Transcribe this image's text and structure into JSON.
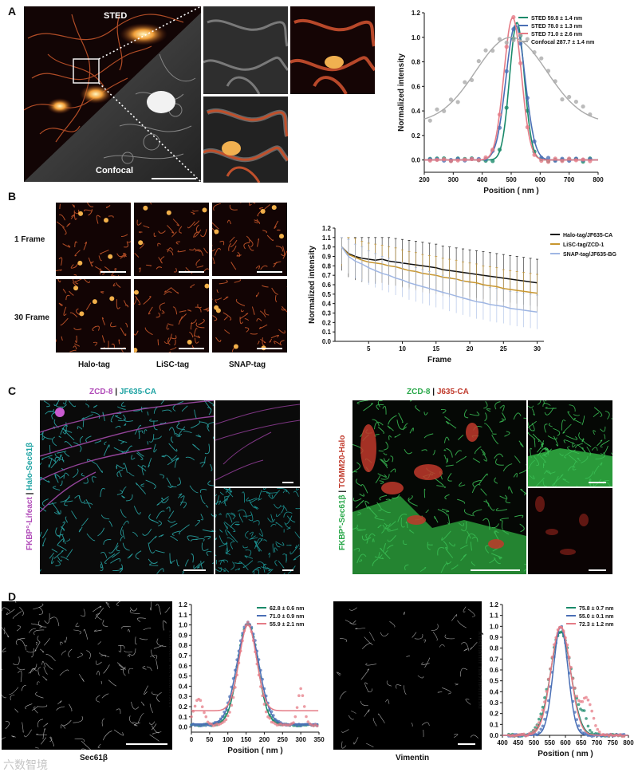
{
  "panels": {
    "A": "A",
    "B": "B",
    "C": "C",
    "D": "D"
  },
  "A": {
    "sted_label": "STED",
    "confocal_label": "Confocal",
    "colors": {
      "sted": "#1a8a6a",
      "sted78": "#4a6fb5",
      "sted71": "#e57b86",
      "confocal": "#aaaaaa"
    },
    "chart_data": {
      "type": "line",
      "xlabel": "Position ( nm )",
      "ylabel": "Normalized intensity",
      "xlim": [
        200,
        800
      ],
      "ylim": [
        -0.1,
        1.2
      ],
      "xticks": [
        200,
        300,
        400,
        500,
        600,
        700,
        800
      ],
      "yticks": [
        0.0,
        0.2,
        0.4,
        0.6,
        0.8,
        1.0,
        1.2
      ],
      "series": [
        {
          "name": "STED 59.8 ± 1.4 nm",
          "center": 520,
          "fwhm": 60,
          "peak": 1.12,
          "color": "#1a8a6a"
        },
        {
          "name": "STED 78.0 ± 1.3 nm",
          "center": 515,
          "fwhm": 78,
          "peak": 1.1,
          "color": "#4a6fb5"
        },
        {
          "name": "STED 71.0 ± 2.6 nm",
          "center": 505,
          "fwhm": 71,
          "peak": 1.16,
          "color": "#e57b86"
        },
        {
          "name": "Confocal 287.7 ± 1.4 nm",
          "center": 500,
          "fwhm": 288,
          "peak": 1.0,
          "base": 0.3,
          "color": "#aaaaaa"
        }
      ]
    }
  },
  "B": {
    "rows": [
      "1 Frame",
      "30 Frame"
    ],
    "cols": [
      "Halo-tag",
      "LiSC-tag",
      "SNAP-tag"
    ],
    "chart_data": {
      "type": "line",
      "xlabel": "Frame",
      "ylabel": "Normalized intensity",
      "xlim": [
        0,
        31
      ],
      "ylim": [
        0.0,
        1.2
      ],
      "xticks": [
        5,
        10,
        15,
        20,
        25,
        30
      ],
      "yticks": [
        0.0,
        0.1,
        0.2,
        0.3,
        0.4,
        0.5,
        0.6,
        0.7,
        0.8,
        0.9,
        1.0,
        1.1,
        1.2
      ],
      "x": [
        1,
        2,
        3,
        4,
        5,
        6,
        7,
        8,
        9,
        10,
        11,
        12,
        13,
        14,
        15,
        16,
        17,
        18,
        19,
        20,
        21,
        22,
        23,
        24,
        25,
        26,
        27,
        28,
        29,
        30
      ],
      "series": [
        {
          "name": "Halo-tag/JF635-CA",
          "color": "#111111",
          "values": [
            1.0,
            0.93,
            0.9,
            0.88,
            0.87,
            0.86,
            0.87,
            0.85,
            0.84,
            0.83,
            0.82,
            0.81,
            0.8,
            0.79,
            0.78,
            0.76,
            0.75,
            0.74,
            0.73,
            0.72,
            0.71,
            0.7,
            0.69,
            0.68,
            0.67,
            0.66,
            0.65,
            0.64,
            0.63,
            0.62
          ],
          "err": 0.25
        },
        {
          "name": "LiSC-tag/ZCD-1",
          "color": "#c8962e",
          "values": [
            1.0,
            0.92,
            0.89,
            0.86,
            0.84,
            0.83,
            0.82,
            0.8,
            0.79,
            0.77,
            0.75,
            0.74,
            0.72,
            0.71,
            0.7,
            0.68,
            0.67,
            0.66,
            0.64,
            0.63,
            0.62,
            0.6,
            0.59,
            0.58,
            0.56,
            0.55,
            0.54,
            0.53,
            0.52,
            0.51
          ],
          "err": 0.2
        },
        {
          "name": "SNAP-tag/JF635-BG",
          "color": "#9fb6e3",
          "values": [
            1.0,
            0.9,
            0.85,
            0.82,
            0.78,
            0.75,
            0.72,
            0.7,
            0.67,
            0.65,
            0.62,
            0.6,
            0.58,
            0.56,
            0.54,
            0.52,
            0.5,
            0.48,
            0.46,
            0.44,
            0.42,
            0.41,
            0.39,
            0.38,
            0.37,
            0.35,
            0.34,
            0.33,
            0.32,
            0.31
          ],
          "err": 0.18
        }
      ]
    }
  },
  "C": {
    "left": {
      "title_a": "ZCD-8",
      "sep": " | ",
      "title_b": "JF635-CA",
      "vert_a": "FKBP°-Lifeact",
      "vert_sep": " | ",
      "vert_b": "Halo-Sec61β"
    },
    "right": {
      "title_a": "ZCD-8",
      "sep": " | ",
      "title_b": "J635-CA",
      "vert_a": "FKBP°-Sec61β",
      "vert_sep": " | ",
      "vert_b": "TOMM20-Halo"
    },
    "colors": {
      "magenta": "#b04ab8",
      "teal": "#1ea3a3",
      "green": "#2aa84a",
      "red": "#c0392b"
    }
  },
  "D": {
    "left_label": "Sec61β",
    "right_label": "Vimentin",
    "chart1": {
      "type": "line",
      "xlabel": "Position ( nm )",
      "ylabel": "Normalized intensity",
      "xlim": [
        0,
        350
      ],
      "ylim": [
        -0.05,
        1.2
      ],
      "xticks": [
        0,
        50,
        100,
        150,
        200,
        250,
        300,
        350
      ],
      "yticks": [
        0.0,
        0.1,
        0.2,
        0.3,
        0.4,
        0.5,
        0.6,
        0.7,
        0.8,
        0.9,
        1.0,
        1.1,
        1.2
      ],
      "series": [
        {
          "name": "62.8 ± 0.6 nm",
          "color": "#1a8a6a",
          "center": 155,
          "fwhm": 63,
          "base": 0.03
        },
        {
          "name": "71.0 ± 0.9 nm",
          "color": "#4a6fb5",
          "center": 155,
          "fwhm": 71,
          "base": 0.03
        },
        {
          "name": "55.9 ± 2.1 nm",
          "color": "#e57b86",
          "center": 155,
          "fwhm": 56,
          "base": 0.16
        }
      ]
    },
    "chart2": {
      "type": "line",
      "xlabel": "Position ( nm )",
      "ylabel": "Normalized intensity",
      "xlim": [
        400,
        800
      ],
      "ylim": [
        0.0,
        1.2
      ],
      "xticks": [
        400,
        450,
        500,
        550,
        600,
        650,
        700,
        750,
        800
      ],
      "yticks": [
        0.0,
        0.1,
        0.2,
        0.3,
        0.4,
        0.5,
        0.6,
        0.7,
        0.8,
        0.9,
        1.0,
        1.1,
        1.2
      ],
      "series": [
        {
          "name": "75.8 ± 0.7 nm",
          "color": "#1a8a6a",
          "center": 585,
          "fwhm": 76,
          "peak": 0.95
        },
        {
          "name": "55.0 ± 0.1 nm",
          "color": "#4a6fb5",
          "center": 585,
          "fwhm": 55,
          "peak": 1.0
        },
        {
          "name": "72.3 ± 1.2 nm",
          "color": "#e57b86",
          "center": 585,
          "fwhm": 72,
          "peak": 1.0
        }
      ]
    }
  },
  "watermark": "六数智境"
}
